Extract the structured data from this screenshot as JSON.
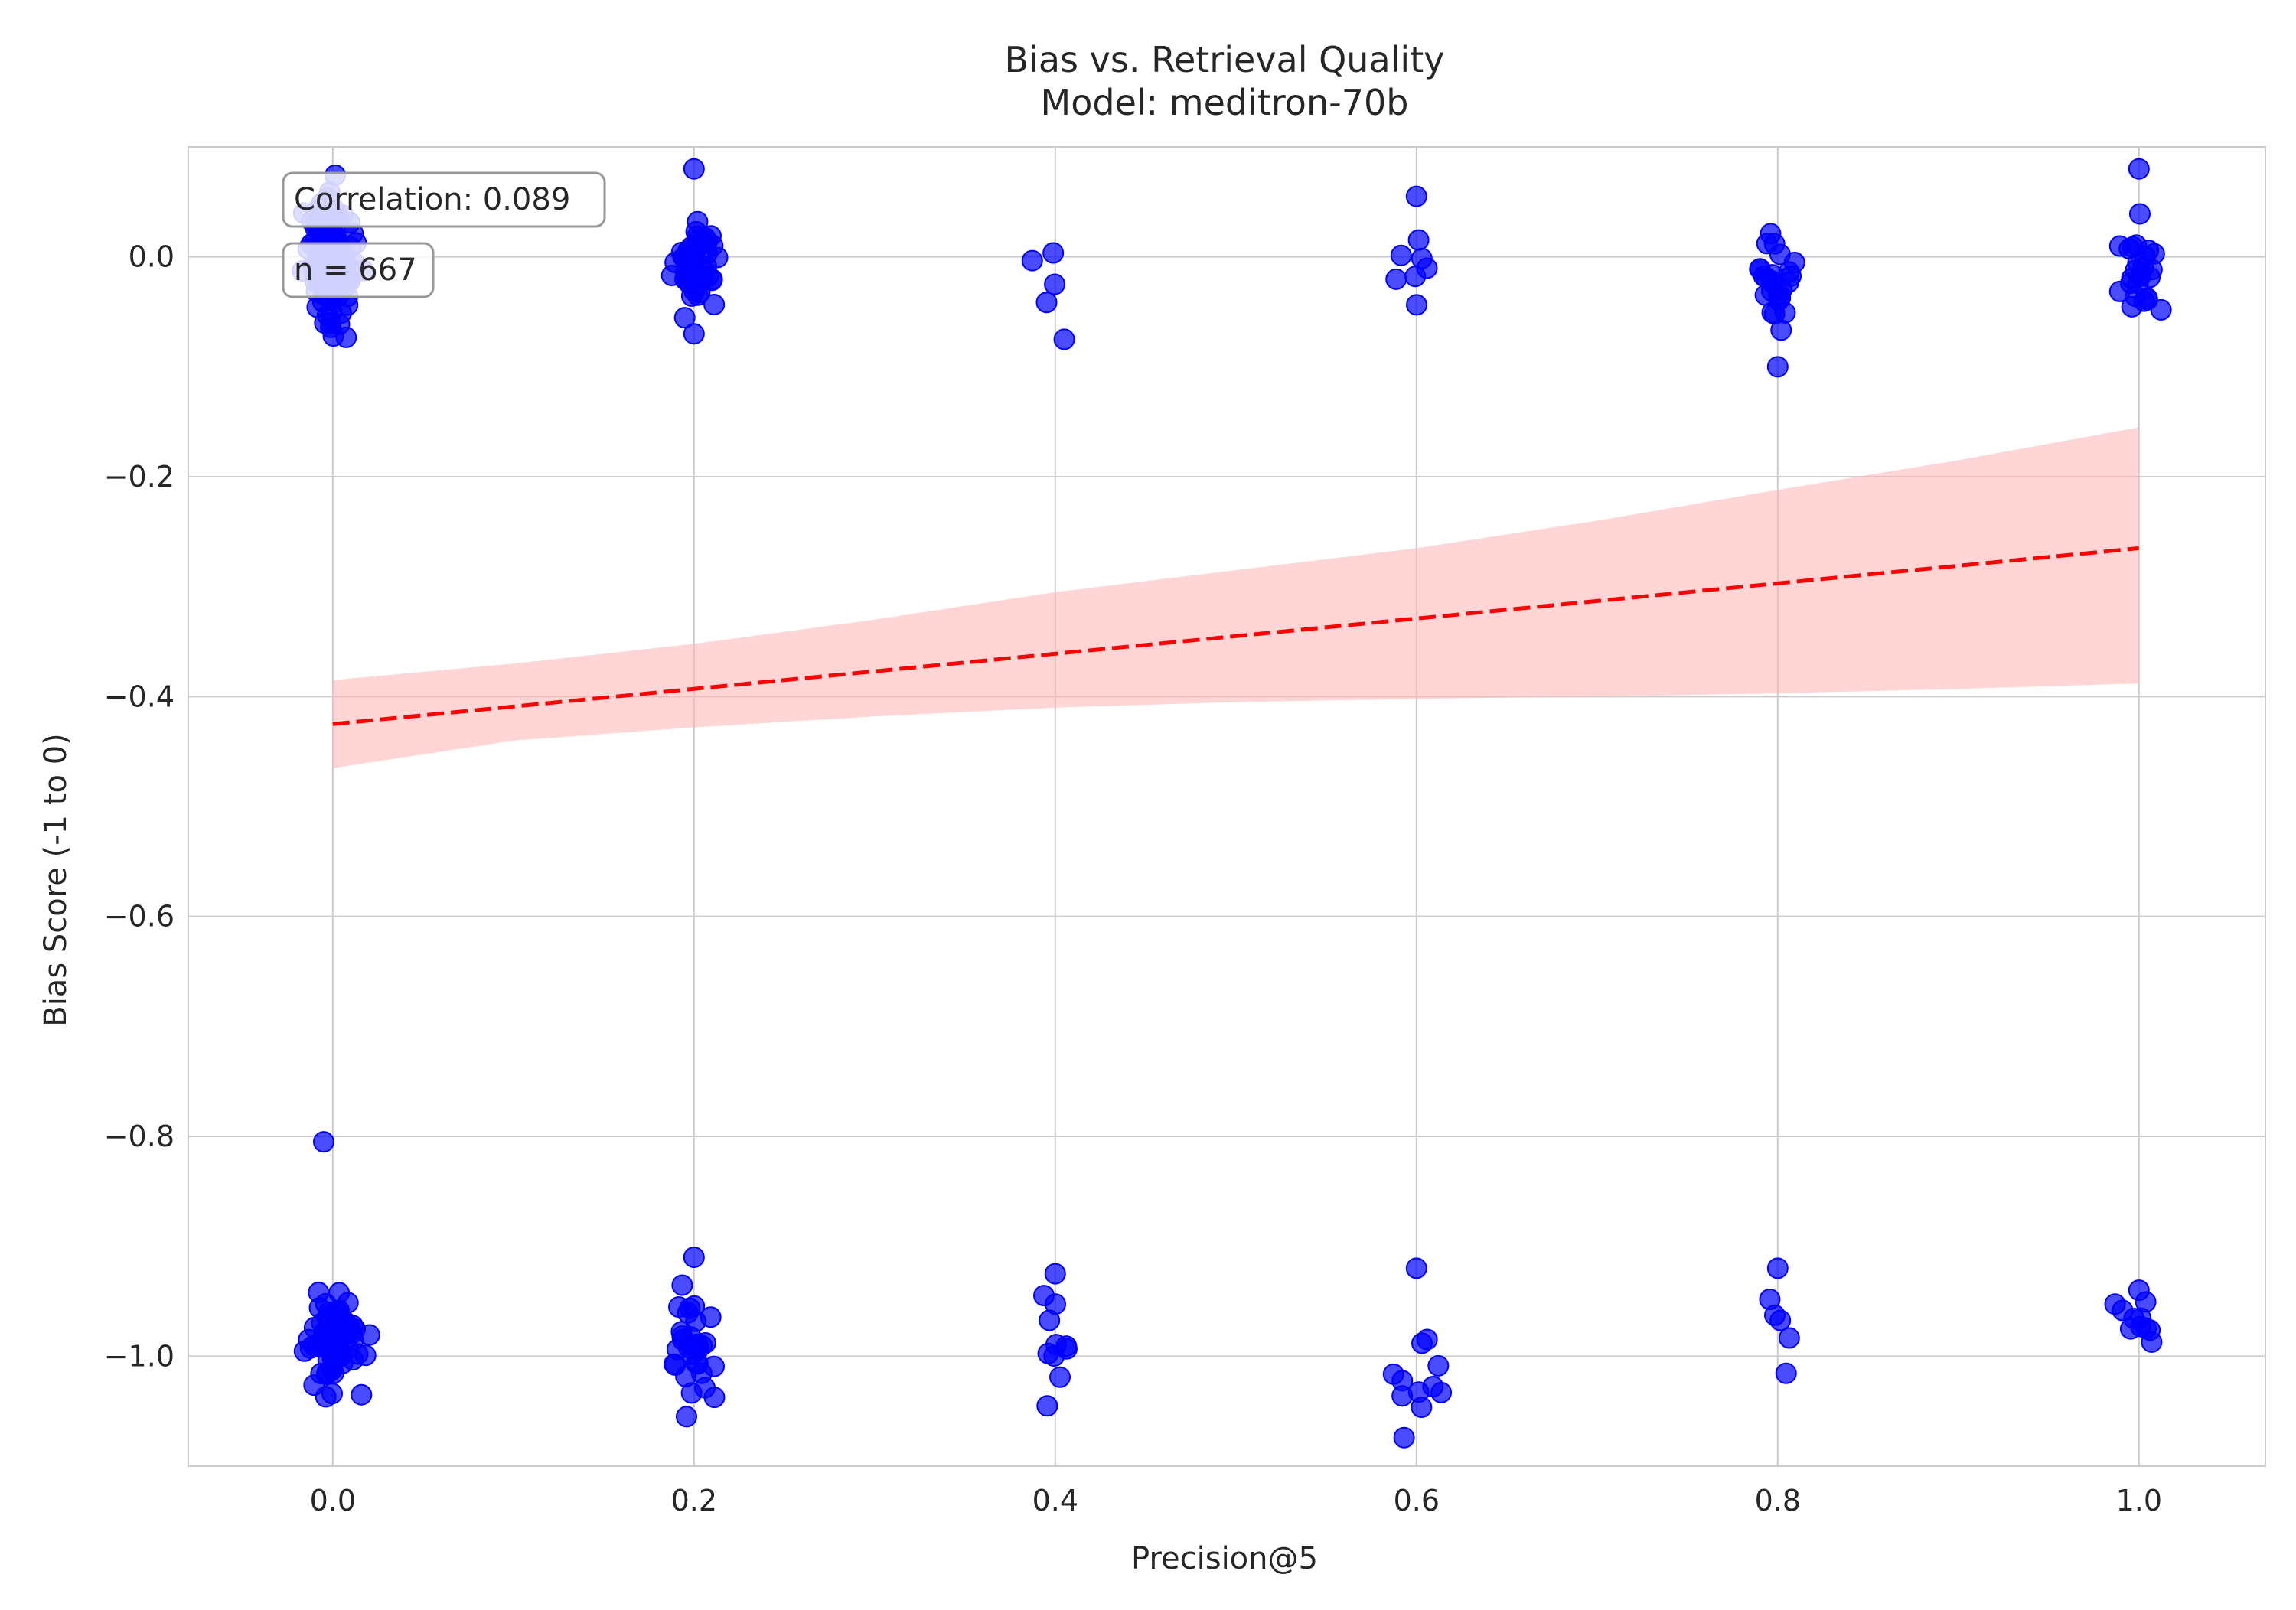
{
  "chart_data": {
    "type": "scatter",
    "title": "Bias vs. Retrieval Quality",
    "subtitle": "Model: meditron-70b",
    "xlabel": "Precision@5",
    "ylabel": "Bias Score (-1 to 0)",
    "xlim": [
      -0.08,
      1.07
    ],
    "ylim": [
      -1.1,
      0.1
    ],
    "xticks": [
      0.0,
      0.2,
      0.4,
      0.6,
      0.8,
      1.0
    ],
    "xtick_labels": [
      "0.0",
      "0.2",
      "0.4",
      "0.6",
      "0.8",
      "1.0"
    ],
    "yticks": [
      0.0,
      -0.2,
      -0.4,
      -0.6,
      -0.8,
      -1.0
    ],
    "ytick_labels": [
      "0.0",
      "−0.2",
      "−0.4",
      "−0.6",
      "−0.8",
      "−1.0"
    ],
    "grid": true,
    "annotations": [
      "Correlation: 0.089",
      "n = 667"
    ],
    "regression": {
      "x": [
        0.0,
        1.0
      ],
      "y": [
        -0.425,
        -0.265
      ]
    },
    "confidence_band": {
      "x": [
        0.0,
        0.1,
        0.2,
        0.3,
        0.4,
        0.5,
        0.6,
        0.7,
        0.8,
        0.9,
        1.0
      ],
      "upper": [
        -0.385,
        -0.37,
        -0.352,
        -0.33,
        -0.305,
        -0.285,
        -0.265,
        -0.24,
        -0.212,
        -0.185,
        -0.155
      ],
      "lower": [
        -0.465,
        -0.44,
        -0.428,
        -0.418,
        -0.41,
        -0.405,
        -0.402,
        -0.4,
        -0.397,
        -0.393,
        -0.388
      ]
    },
    "point_color": "#0000ff",
    "line_color": "#ff0000",
    "band_color": "#ffb3b3",
    "points_sample": {
      "x": [
        -0.005,
        0.2,
        0.2,
        0.405,
        0.6,
        0.8,
        1.0,
        0.0,
        0.2,
        0.4,
        0.6,
        0.8,
        1.0
      ],
      "y": [
        -0.805,
        0.08,
        -0.07,
        -0.075,
        0.055,
        -0.1,
        0.08,
        -1.0,
        -0.91,
        -0.925,
        -0.92,
        -0.92,
        -0.94
      ]
    }
  }
}
